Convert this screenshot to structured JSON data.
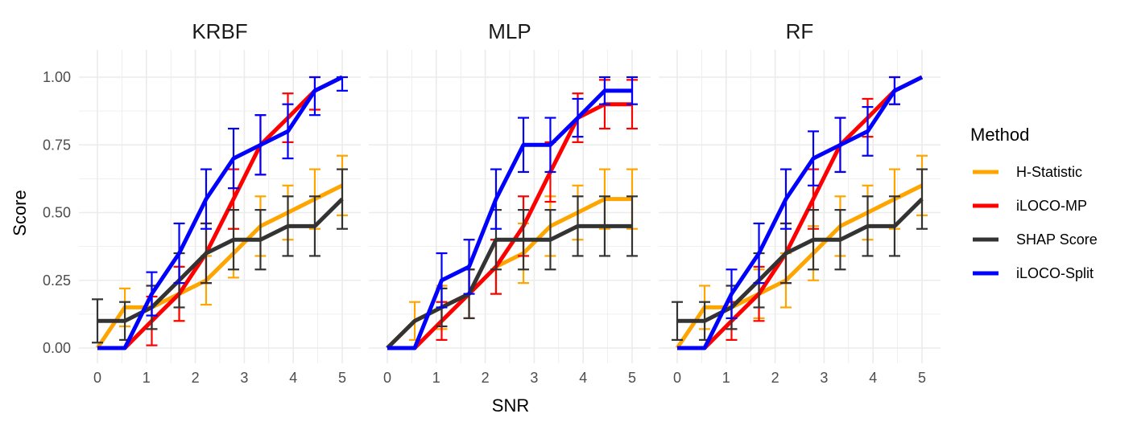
{
  "chart_data": {
    "type": "line",
    "legend_title": "Method",
    "legend_position": "right",
    "xlabel": "SNR",
    "ylabel": "Score",
    "xlim": [
      0,
      5
    ],
    "ylim": [
      0,
      1
    ],
    "x_ticks": [
      "0",
      "1",
      "2",
      "3",
      "4",
      "5"
    ],
    "y_ticks": [
      "0.00",
      "0.25",
      "0.50",
      "0.75",
      "1.00"
    ],
    "grid": true,
    "x": [
      0.0,
      0.56,
      1.11,
      1.67,
      2.22,
      2.78,
      3.33,
      3.89,
      4.44,
      5.0
    ],
    "colors": {
      "H-Statistic": "#ffa500",
      "iLOCO-MP": "#ff0000",
      "SHAP Score": "#333333",
      "iLOCO-Split": "#0000ff"
    },
    "panels": [
      {
        "title": "KRBF",
        "series": [
          {
            "name": "H-Statistic",
            "values": [
              0.0,
              0.15,
              0.15,
              0.2,
              0.25,
              0.35,
              0.45,
              0.5,
              0.55,
              0.6
            ],
            "err": [
              0.0,
              0.07,
              0.08,
              0.1,
              0.09,
              0.09,
              0.11,
              0.1,
              0.11,
              0.11
            ]
          },
          {
            "name": "iLOCO-MP",
            "values": [
              0.0,
              0.0,
              0.1,
              0.2,
              0.35,
              0.55,
              0.75,
              0.85,
              0.95,
              1.0
            ],
            "err": [
              0.0,
              0.0,
              0.09,
              0.1,
              0.11,
              0.11,
              0.11,
              0.09,
              0.07,
              0.0
            ]
          },
          {
            "name": "SHAP Score",
            "values": [
              0.1,
              0.1,
              0.15,
              0.25,
              0.35,
              0.4,
              0.4,
              0.45,
              0.45,
              0.55
            ],
            "err": [
              0.08,
              0.07,
              0.08,
              0.1,
              0.11,
              0.11,
              0.11,
              0.11,
              0.11,
              0.11
            ]
          },
          {
            "name": "iLOCO-Split",
            "values": [
              0.0,
              0.0,
              0.2,
              0.35,
              0.55,
              0.7,
              0.75,
              0.8,
              0.95,
              1.0
            ],
            "err": [
              0.0,
              0.0,
              0.08,
              0.11,
              0.11,
              0.11,
              0.11,
              0.1,
              0.09,
              0.05
            ]
          }
        ]
      },
      {
        "title": "MLP",
        "series": [
          {
            "name": "H-Statistic",
            "values": [
              0.0,
              0.1,
              0.15,
              0.2,
              0.3,
              0.35,
              0.45,
              0.5,
              0.55,
              0.55
            ],
            "err": [
              0.0,
              0.07,
              0.08,
              0.09,
              0.1,
              0.11,
              0.11,
              0.1,
              0.11,
              0.11
            ]
          },
          {
            "name": "iLOCO-MP",
            "values": [
              0.0,
              0.0,
              0.1,
              0.2,
              0.3,
              0.45,
              0.65,
              0.85,
              0.9,
              0.9
            ],
            "err": [
              0.0,
              0.0,
              0.07,
              0.09,
              0.1,
              0.11,
              0.11,
              0.09,
              0.09,
              0.09
            ]
          },
          {
            "name": "SHAP Score",
            "values": [
              0.0,
              0.1,
              0.15,
              0.2,
              0.4,
              0.4,
              0.4,
              0.45,
              0.45,
              0.45
            ],
            "err": [
              0.0,
              0.0,
              0.07,
              0.09,
              0.11,
              0.11,
              0.11,
              0.11,
              0.11,
              0.11
            ]
          },
          {
            "name": "iLOCO-Split",
            "values": [
              0.0,
              0.0,
              0.25,
              0.3,
              0.55,
              0.75,
              0.75,
              0.85,
              0.95,
              0.95
            ],
            "err": [
              0.0,
              0.0,
              0.1,
              0.1,
              0.11,
              0.1,
              0.1,
              0.07,
              0.05,
              0.05
            ]
          }
        ]
      },
      {
        "title": "RF",
        "series": [
          {
            "name": "H-Statistic",
            "values": [
              0.0,
              0.15,
              0.15,
              0.2,
              0.25,
              0.35,
              0.45,
              0.5,
              0.55,
              0.6
            ],
            "err": [
              0.0,
              0.08,
              0.08,
              0.09,
              0.1,
              0.1,
              0.11,
              0.1,
              0.11,
              0.11
            ]
          },
          {
            "name": "iLOCO-MP",
            "values": [
              0.0,
              0.0,
              0.1,
              0.2,
              0.35,
              0.55,
              0.75,
              0.85,
              0.95,
              1.0
            ],
            "err": [
              0.0,
              0.0,
              0.07,
              0.1,
              0.11,
              0.11,
              0.1,
              0.07,
              0.05,
              0.0
            ]
          },
          {
            "name": "SHAP Score",
            "values": [
              0.1,
              0.1,
              0.15,
              0.25,
              0.35,
              0.4,
              0.4,
              0.45,
              0.45,
              0.55
            ],
            "err": [
              0.07,
              0.07,
              0.08,
              0.1,
              0.11,
              0.11,
              0.11,
              0.11,
              0.11,
              0.11
            ]
          },
          {
            "name": "iLOCO-Split",
            "values": [
              0.0,
              0.0,
              0.2,
              0.35,
              0.55,
              0.7,
              0.75,
              0.8,
              0.95,
              1.0
            ],
            "err": [
              0.0,
              0.0,
              0.09,
              0.11,
              0.11,
              0.1,
              0.1,
              0.09,
              0.05,
              0.0
            ]
          }
        ]
      }
    ]
  }
}
